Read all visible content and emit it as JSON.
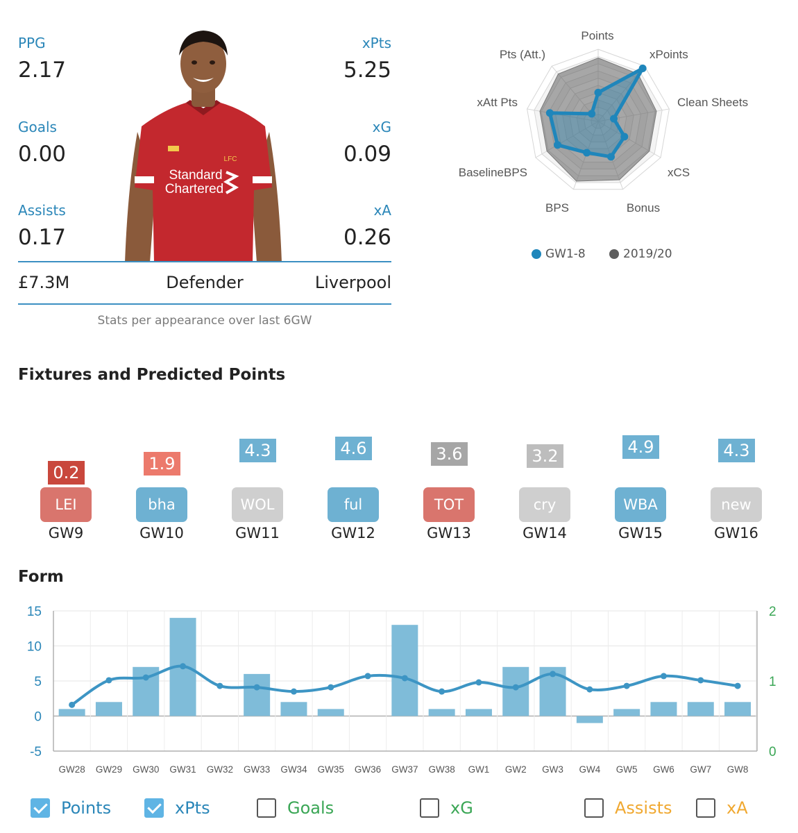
{
  "stats": {
    "ppg": {
      "label": "PPG",
      "value": "2.17"
    },
    "xpts": {
      "label": "xPts",
      "value": "5.25"
    },
    "goals": {
      "label": "Goals",
      "value": "0.00"
    },
    "xg": {
      "label": "xG",
      "value": "0.09"
    },
    "assists": {
      "label": "Assists",
      "value": "0.17"
    },
    "xa": {
      "label": "xA",
      "value": "0.26"
    }
  },
  "player": {
    "price": "£7.3M",
    "position": "Defender",
    "team": "Liverpool",
    "shirt_sponsor_line1": "Standard",
    "shirt_sponsor_line2": "Chartered",
    "shirt_crest": "LFC"
  },
  "caption": "Stats per appearance over last 6GW",
  "radar": {
    "axes": [
      "Points",
      "xPoints",
      "Clean Sheets",
      "xCS",
      "Bonus",
      "BPS",
      "BaselineBPS",
      "xAtt Pts",
      "Pts (Att.)"
    ],
    "gw_values": [
      0.4,
      0.96,
      0.22,
      0.42,
      0.52,
      0.46,
      0.65,
      0.68,
      0.14
    ],
    "season_values": [
      0.88,
      0.86,
      0.82,
      0.82,
      0.86,
      0.88,
      0.82,
      0.82,
      0.86
    ],
    "legend": [
      {
        "label": "GW1-8",
        "color": "#1f86bb"
      },
      {
        "label": "2019/20",
        "color": "#5e5e5e"
      }
    ]
  },
  "fixtures_title": "Fixtures and Predicted Points",
  "fixtures": [
    {
      "gw": "GW9",
      "opponent": "LEI",
      "points": "0.2",
      "pts_value": 0.2,
      "difficulty_color": "#d9756d",
      "points_color": "#c9473c"
    },
    {
      "gw": "GW10",
      "opponent": "bha",
      "points": "1.9",
      "pts_value": 1.9,
      "difficulty_color": "#6eb1d2",
      "points_color": "#ec7a6c"
    },
    {
      "gw": "GW11",
      "opponent": "WOL",
      "points": "4.3",
      "pts_value": 4.3,
      "difficulty_color": "#cfcfcf",
      "points_color": "#6eb1d2"
    },
    {
      "gw": "GW12",
      "opponent": "ful",
      "points": "4.6",
      "pts_value": 4.6,
      "difficulty_color": "#6eb1d2",
      "points_color": "#6eb1d2"
    },
    {
      "gw": "GW13",
      "opponent": "TOT",
      "points": "3.6",
      "pts_value": 3.6,
      "difficulty_color": "#d9756d",
      "points_color": "#a6a6a6"
    },
    {
      "gw": "GW14",
      "opponent": "cry",
      "points": "3.2",
      "pts_value": 3.2,
      "difficulty_color": "#cfcfcf",
      "points_color": "#bdbdbd"
    },
    {
      "gw": "GW15",
      "opponent": "WBA",
      "points": "4.9",
      "pts_value": 4.9,
      "difficulty_color": "#6eb1d2",
      "points_color": "#6eb1d2"
    },
    {
      "gw": "GW16",
      "opponent": "new",
      "points": "4.3",
      "pts_value": 4.3,
      "difficulty_color": "#cfcfcf",
      "points_color": "#6eb1d2"
    }
  ],
  "form_title": "Form",
  "chart_data": {
    "type": "bar",
    "categories": [
      "GW28",
      "GW29",
      "GW30",
      "GW31",
      "GW32",
      "GW33",
      "GW34",
      "GW35",
      "GW36",
      "GW37",
      "GW38",
      "GW1",
      "GW2",
      "GW3",
      "GW4",
      "GW5",
      "GW6",
      "GW7",
      "GW8"
    ],
    "series": [
      {
        "name": "Points",
        "type": "bar",
        "axis": "left",
        "color": "#7fbcd9",
        "values": [
          1,
          2,
          7,
          14,
          0,
          6,
          2,
          1,
          null,
          13,
          1,
          1,
          7,
          7,
          -1,
          1,
          2,
          2,
          2
        ]
      },
      {
        "name": "xPts",
        "type": "line",
        "axis": "right",
        "color": "#3d95c4",
        "values": [
          0.66,
          1.01,
          1.05,
          1.21,
          0.93,
          0.91,
          0.85,
          0.91,
          1.07,
          1.04,
          0.85,
          0.98,
          0.91,
          1.1,
          0.88,
          0.93,
          1.07,
          1.01,
          0.93
        ]
      }
    ],
    "ylim": [
      -5,
      15
    ],
    "yticks": [
      -5,
      0,
      5,
      10,
      15
    ],
    "y2lim": [
      0,
      2
    ],
    "y2ticks": [
      0,
      1,
      2
    ],
    "left_axis_color": "#2a86b8",
    "right_axis_color": "#3aa655",
    "grid": true
  },
  "toggles": [
    {
      "label": "Points",
      "checked": true,
      "color": "#2a86b8"
    },
    {
      "label": "xPts",
      "checked": true,
      "color": "#2a86b8"
    },
    {
      "label": "Goals",
      "checked": false,
      "color": "#3aa655"
    },
    {
      "label": "xG",
      "checked": false,
      "color": "#3aa655"
    },
    {
      "label": "Assists",
      "checked": false,
      "color": "#f0a830"
    },
    {
      "label": "xA",
      "checked": false,
      "color": "#f0a830"
    }
  ]
}
